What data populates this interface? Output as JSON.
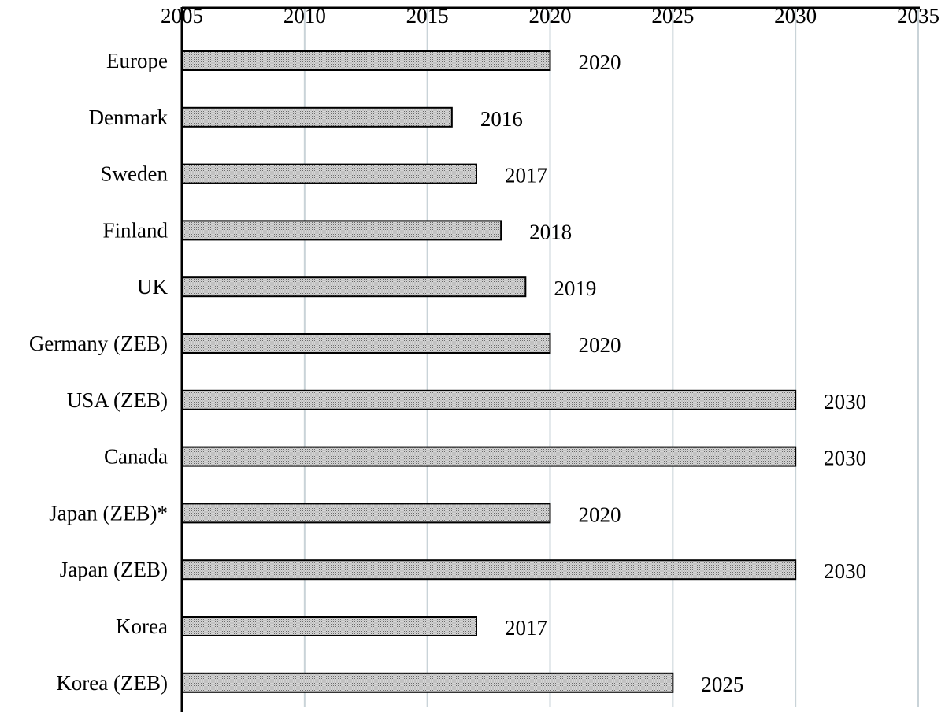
{
  "chart_data": {
    "type": "bar",
    "orientation": "horizontal",
    "title": "",
    "xlabel": "",
    "ylabel": "",
    "xlim": [
      2005,
      2035
    ],
    "x_ticks": [
      2005,
      2010,
      2015,
      2020,
      2025,
      2030,
      2035
    ],
    "x_axis_position": "top",
    "grid": true,
    "grid_axis": "x",
    "legend": "none",
    "categories": [
      "Europe",
      "Denmark",
      "Sweden",
      "Finland",
      "UK",
      "Germany (ZEB)",
      "USA (ZEB)",
      "Canada",
      "Japan (ZEB)*",
      "Japan (ZEB)",
      "Korea",
      "Korea (ZEB)"
    ],
    "values": [
      2020,
      2016,
      2017,
      2018,
      2019,
      2020,
      2030,
      2030,
      2020,
      2030,
      2017,
      2025
    ],
    "data_labels": [
      "2020",
      "2016",
      "2017",
      "2018",
      "2019",
      "2020",
      "2030",
      "2030",
      "2020",
      "2030",
      "2017",
      "2025"
    ],
    "bar_fill": "#c8c8c8",
    "bar_pattern": "fine-dot",
    "bar_stroke": "#000000",
    "grid_color": "#c9d3d8"
  }
}
